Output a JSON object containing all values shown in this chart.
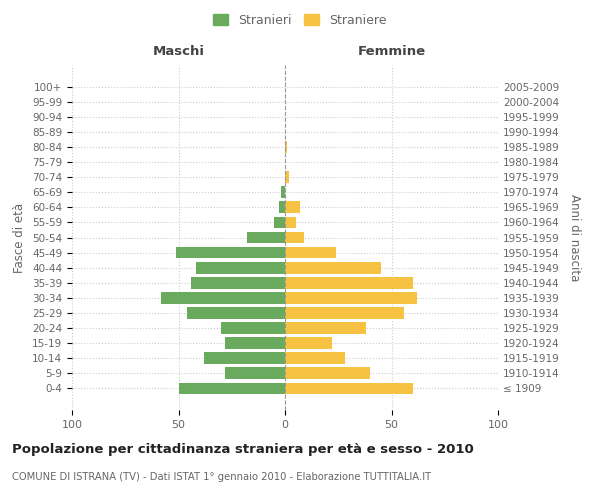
{
  "age_groups": [
    "100+",
    "95-99",
    "90-94",
    "85-89",
    "80-84",
    "75-79",
    "70-74",
    "65-69",
    "60-64",
    "55-59",
    "50-54",
    "45-49",
    "40-44",
    "35-39",
    "30-34",
    "25-29",
    "20-24",
    "15-19",
    "10-14",
    "5-9",
    "0-4"
  ],
  "birth_years": [
    "≤ 1909",
    "1910-1914",
    "1915-1919",
    "1920-1924",
    "1925-1929",
    "1930-1934",
    "1935-1939",
    "1940-1944",
    "1945-1949",
    "1950-1954",
    "1955-1959",
    "1960-1964",
    "1965-1969",
    "1970-1974",
    "1975-1979",
    "1980-1984",
    "1985-1989",
    "1990-1994",
    "1995-1999",
    "2000-2004",
    "2005-2009"
  ],
  "maschi": [
    0,
    0,
    0,
    0,
    0,
    0,
    0,
    2,
    3,
    5,
    18,
    51,
    42,
    44,
    58,
    46,
    30,
    28,
    38,
    28,
    50
  ],
  "femmine": [
    0,
    0,
    0,
    0,
    1,
    0,
    2,
    0,
    7,
    5,
    9,
    24,
    45,
    60,
    62,
    56,
    38,
    22,
    28,
    40,
    60
  ],
  "color_maschi": "#6aaa5e",
  "color_femmine": "#f5c242",
  "title": "Popolazione per cittadinanza straniera per età e sesso - 2010",
  "subtitle": "COMUNE DI ISTRANA (TV) - Dati ISTAT 1° gennaio 2010 - Elaborazione TUTTITALIA.IT",
  "xlabel_left": "Maschi",
  "xlabel_right": "Femmine",
  "ylabel_left": "Fasce di età",
  "ylabel_right": "Anni di nascita",
  "legend_maschi": "Stranieri",
  "legend_femmine": "Straniere",
  "xlim": 100,
  "background_color": "#ffffff",
  "grid_color": "#cccccc",
  "text_color": "#666666"
}
